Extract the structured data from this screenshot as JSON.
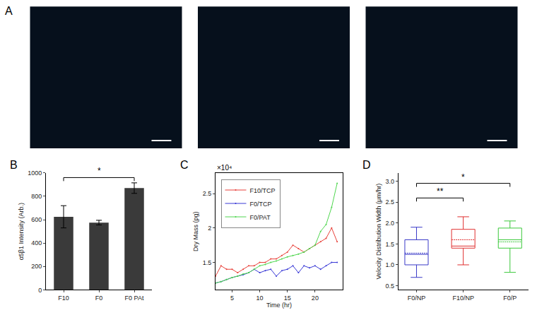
{
  "images": {
    "label": "A",
    "count": 3
  },
  "chart_data": [
    {
      "title": "B",
      "type": "bar",
      "categories": [
        "F10",
        "F0",
        "F0 PAt"
      ],
      "values": [
        625,
        575,
        870
      ],
      "errors": [
        95,
        20,
        45
      ],
      "color": "#3a3a3a",
      "ylabel": "α5β1 Intensity (Arb.)",
      "ylim": [
        0,
        1000
      ],
      "yticks": [
        0,
        200,
        400,
        600,
        800,
        1000
      ],
      "grid": false,
      "annotations": [
        {
          "text": "*",
          "from": "F10",
          "to": "F0 PAt",
          "y": 960
        }
      ]
    },
    {
      "title": "C",
      "type": "line",
      "x": [
        2,
        3,
        4,
        5,
        6,
        7,
        8,
        9,
        10,
        11,
        12,
        13,
        14,
        15,
        16,
        17,
        18,
        19,
        20,
        21,
        22,
        23,
        24
      ],
      "series": [
        {
          "name": "F10/TCP",
          "color": "#e8413a",
          "values": [
            1.3,
            1.45,
            1.4,
            1.4,
            1.35,
            1.4,
            1.45,
            1.45,
            1.5,
            1.5,
            1.55,
            1.55,
            1.6,
            1.65,
            1.75,
            1.7,
            1.65,
            1.7,
            1.75,
            1.8,
            1.85,
            2.0,
            1.8
          ]
        },
        {
          "name": "F0/TCP",
          "color": "#3a3ad6",
          "values": [
            1.2,
            1.22,
            1.25,
            1.28,
            1.3,
            1.32,
            1.35,
            1.4,
            1.35,
            1.38,
            1.4,
            1.3,
            1.38,
            1.4,
            1.45,
            1.35,
            1.45,
            1.42,
            1.45,
            1.4,
            1.45,
            1.5,
            1.5
          ]
        },
        {
          "name": "F0/PAT",
          "color": "#4fd64f",
          "values": [
            1.2,
            1.22,
            1.25,
            1.28,
            1.3,
            1.33,
            1.35,
            1.4,
            1.45,
            1.47,
            1.5,
            1.52,
            1.55,
            1.58,
            1.6,
            1.62,
            1.65,
            1.7,
            1.75,
            1.95,
            2.05,
            2.3,
            2.65
          ]
        }
      ],
      "xlabel": "Time (hr)",
      "ylabel": "Dry Mass (pg)",
      "xlim": [
        2,
        25
      ],
      "xticks": [
        5,
        10,
        15,
        20
      ],
      "ylim": [
        1.1,
        2.8
      ],
      "yticks": [
        1.5,
        2,
        2.5
      ],
      "grid": false,
      "legend": "upper left",
      "annotations": [
        {
          "text": "×10⁴"
        }
      ]
    },
    {
      "title": "D",
      "type": "box",
      "categories": [
        "F0/NP",
        "F10/NP",
        "F0/P"
      ],
      "series": [
        {
          "name": "F0/NP",
          "color": "#3a3ac8",
          "min": 0.7,
          "q1": 1.0,
          "median": 1.25,
          "q3": 1.6,
          "max": 1.9,
          "mean": 1.28
        },
        {
          "name": "F10/NP",
          "color": "#e03030",
          "min": 1.0,
          "q1": 1.4,
          "median": 1.45,
          "q3": 1.85,
          "max": 2.15,
          "mean": 1.6
        },
        {
          "name": "F0/P",
          "color": "#3ac83a",
          "min": 0.82,
          "q1": 1.4,
          "median": 1.6,
          "q3": 1.88,
          "max": 2.05,
          "mean": 1.55
        }
      ],
      "ylabel": "Velocity Distribution Width (μm/hr)",
      "ylim": [
        0.4,
        3.2
      ],
      "yticks": [
        0.5,
        {
          "value": 1,
          "label": "1.0"
        },
        1.5,
        {
          "value": 2,
          "label": "2.0"
        },
        2.5,
        {
          "value": 3,
          "label": "3.0"
        }
      ],
      "grid": false,
      "annotations": [
        {
          "text": "**",
          "from": "F0/NP",
          "to": "F10/NP",
          "y": 2.6
        },
        {
          "text": "*",
          "from": "F0/NP",
          "to": "F0/P",
          "y": 2.95
        }
      ]
    }
  ]
}
